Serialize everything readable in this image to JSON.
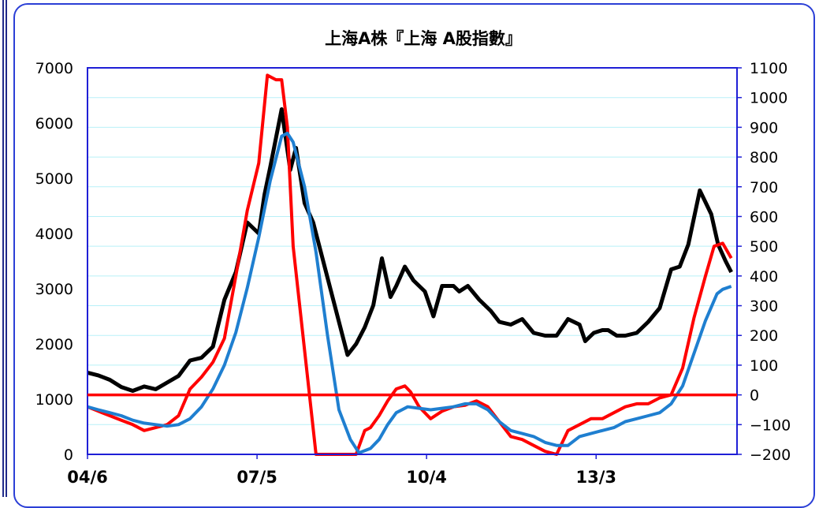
{
  "chart_data": {
    "type": "line",
    "title": "上海A株『上海 A股指數』",
    "x_tick_labels": [
      "04/6",
      "07/5",
      "10/4",
      "13/3"
    ],
    "left_axis": {
      "ylim": [
        0,
        7000
      ],
      "ticks": [
        "7000",
        "6000",
        "5000",
        "4000",
        "3000",
        "2000",
        "1000",
        "0"
      ]
    },
    "right_axis": {
      "ylim": [
        -200,
        1100
      ],
      "ticks": [
        "1100",
        "1000",
        "900",
        "800",
        "700",
        "600",
        "500",
        "400",
        "300",
        "200",
        "100",
        "0",
        "−100",
        "−200"
      ]
    },
    "x_range": [
      2004.41,
      2015.75
    ],
    "grid": "horizontal",
    "reference_line": {
      "axis": "right",
      "value": 0,
      "color": "#ff0000"
    },
    "colors": {
      "plot_border": "#1f1fd6",
      "grid": "#b8f0f8",
      "frame": "#2b3fd6"
    },
    "series": [
      {
        "axis": "left",
        "color": "#000000",
        "x": [
          2004.41,
          2004.6,
          2004.8,
          2005.0,
          2005.2,
          2005.4,
          2005.6,
          2005.8,
          2006.0,
          2006.2,
          2006.4,
          2006.6,
          2006.8,
          2007.0,
          2007.2,
          2007.4,
          2007.5,
          2007.6,
          2007.8,
          2007.95,
          2008.05,
          2008.2,
          2008.35,
          2008.5,
          2008.65,
          2008.8,
          2008.95,
          2009.1,
          2009.25,
          2009.4,
          2009.55,
          2009.7,
          2009.8,
          2009.95,
          2010.1,
          2010.3,
          2010.45,
          2010.6,
          2010.8,
          2010.9,
          2011.05,
          2011.25,
          2011.45,
          2011.6,
          2011.8,
          2012.0,
          2012.2,
          2012.4,
          2012.6,
          2012.8,
          2013.0,
          2013.1,
          2013.25,
          2013.4,
          2013.5,
          2013.65,
          2013.8,
          2014.0,
          2014.2,
          2014.4,
          2014.6,
          2014.75,
          2014.9,
          2015.1,
          2015.3,
          2015.42,
          2015.55,
          2015.65
        ],
        "values": [
          1480,
          1430,
          1350,
          1220,
          1150,
          1230,
          1180,
          1300,
          1420,
          1700,
          1750,
          1950,
          2800,
          3300,
          4200,
          4000,
          4700,
          5200,
          6250,
          5150,
          5550,
          4550,
          4200,
          3600,
          3000,
          2400,
          1800,
          2000,
          2300,
          2700,
          3550,
          2850,
          3050,
          3400,
          3150,
          2950,
          2500,
          3050,
          3050,
          2950,
          3050,
          2800,
          2600,
          2400,
          2350,
          2450,
          2200,
          2150,
          2150,
          2450,
          2350,
          2050,
          2200,
          2250,
          2250,
          2150,
          2150,
          2200,
          2400,
          2650,
          3350,
          3400,
          3800,
          4780,
          4350,
          3800,
          3500,
          3300
        ]
      },
      {
        "axis": "right",
        "color": "#ff0000",
        "x": [
          2004.41,
          2004.6,
          2004.8,
          2005.0,
          2005.2,
          2005.4,
          2005.6,
          2005.8,
          2006.0,
          2006.2,
          2006.4,
          2006.6,
          2006.8,
          2007.0,
          2007.2,
          2007.4,
          2007.55,
          2007.7,
          2007.8,
          2007.9,
          2008.0,
          2008.2,
          2008.4,
          2008.6,
          2008.8,
          2009.0,
          2009.1,
          2009.25,
          2009.35,
          2009.5,
          2009.65,
          2009.8,
          2009.95,
          2010.05,
          2010.2,
          2010.4,
          2010.6,
          2010.8,
          2011.0,
          2011.2,
          2011.4,
          2011.6,
          2011.8,
          2012.0,
          2012.2,
          2012.4,
          2012.6,
          2012.8,
          2013.0,
          2013.2,
          2013.4,
          2013.6,
          2013.8,
          2014.0,
          2014.2,
          2014.4,
          2014.6,
          2014.8,
          2015.0,
          2015.2,
          2015.35,
          2015.5,
          2015.65
        ],
        "values": [
          -40,
          -55,
          -70,
          -85,
          -100,
          -120,
          -110,
          -100,
          -70,
          20,
          60,
          110,
          190,
          400,
          620,
          780,
          1075,
          1060,
          1060,
          900,
          500,
          150,
          -200,
          -200,
          -200,
          -200,
          -200,
          -120,
          -110,
          -70,
          -20,
          20,
          30,
          10,
          -40,
          -80,
          -55,
          -40,
          -35,
          -20,
          -40,
          -90,
          -140,
          -150,
          -170,
          -190,
          -200,
          -120,
          -100,
          -80,
          -80,
          -60,
          -40,
          -30,
          -30,
          -10,
          0,
          90,
          260,
          400,
          500,
          510,
          460
        ]
      },
      {
        "axis": "right",
        "color": "#1f7fd0",
        "x": [
          2004.41,
          2004.6,
          2004.8,
          2005.0,
          2005.2,
          2005.4,
          2005.6,
          2005.8,
          2006.0,
          2006.2,
          2006.4,
          2006.6,
          2006.8,
          2007.0,
          2007.2,
          2007.4,
          2007.6,
          2007.8,
          2007.9,
          2008.0,
          2008.2,
          2008.4,
          2008.6,
          2008.8,
          2009.0,
          2009.15,
          2009.35,
          2009.5,
          2009.65,
          2009.8,
          2010.0,
          2010.2,
          2010.4,
          2010.6,
          2010.8,
          2011.0,
          2011.2,
          2011.4,
          2011.6,
          2011.8,
          2012.0,
          2012.2,
          2012.4,
          2012.6,
          2012.8,
          2013.0,
          2013.2,
          2013.4,
          2013.6,
          2013.8,
          2014.0,
          2014.2,
          2014.4,
          2014.6,
          2014.8,
          2015.0,
          2015.2,
          2015.4,
          2015.5,
          2015.65
        ],
        "values": [
          -40,
          -50,
          -60,
          -70,
          -85,
          -95,
          -100,
          -105,
          -100,
          -80,
          -40,
          20,
          100,
          210,
          360,
          530,
          720,
          870,
          880,
          850,
          700,
          480,
          200,
          -50,
          -150,
          -195,
          -180,
          -150,
          -100,
          -60,
          -40,
          -45,
          -50,
          -45,
          -40,
          -30,
          -30,
          -50,
          -90,
          -120,
          -130,
          -140,
          -160,
          -170,
          -170,
          -140,
          -130,
          -120,
          -110,
          -90,
          -80,
          -70,
          -60,
          -30,
          30,
          140,
          250,
          340,
          355,
          365
        ]
      }
    ]
  }
}
